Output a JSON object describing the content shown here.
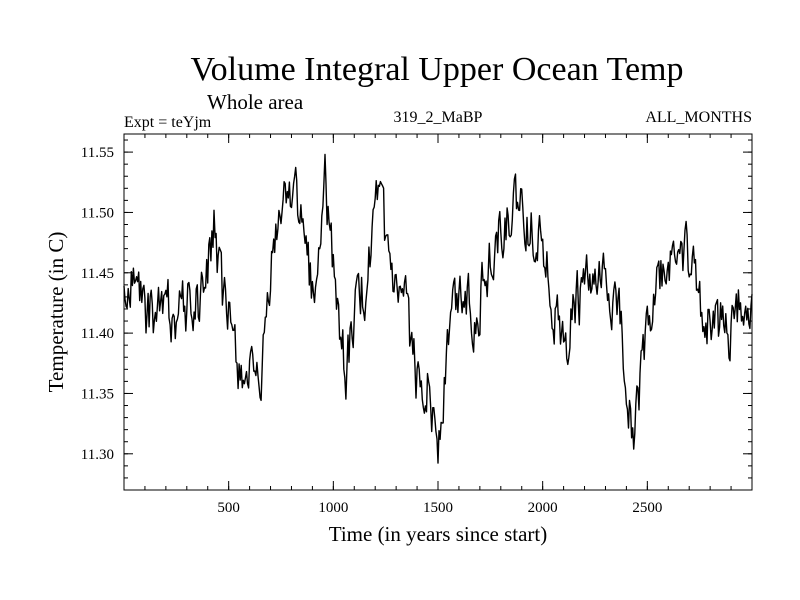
{
  "chart_data": {
    "type": "line",
    "title": "Volume Integral Upper Ocean Temp",
    "subtitle": "Whole area",
    "info_left": "Expt = teYjm",
    "info_center": "319_2_MaBP",
    "info_right": "ALL_MONTHS",
    "xlabel": "Time (in years since start)",
    "ylabel": "Temperature (in C)",
    "xlim": [
      0,
      3000
    ],
    "ylim": [
      11.27,
      11.565
    ],
    "x_ticks": [
      500,
      1000,
      1500,
      2000,
      2500
    ],
    "x_tick_labels": [
      "500",
      "1000",
      "1500",
      "2000",
      "2500"
    ],
    "y_ticks": [
      11.3,
      11.35,
      11.4,
      11.45,
      11.5,
      11.55
    ],
    "y_tick_labels": [
      "11.30",
      "11.35",
      "11.40",
      "11.45",
      "11.50",
      "11.55"
    ],
    "x_minor_step": 100,
    "y_minor_step": 0.01,
    "series": [
      {
        "name": "Volume Integral Upper Ocean Temp",
        "color": "#000000",
        "sample_step_years": 5,
        "trend_points": {
          "x": [
            0,
            40,
            100,
            200,
            300,
            380,
            430,
            470,
            520,
            560,
            600,
            630,
            660,
            700,
            760,
            810,
            860,
            910,
            960,
            1020,
            1060,
            1100,
            1150,
            1210,
            1260,
            1300,
            1350,
            1400,
            1450,
            1500,
            1560,
            1620,
            1680,
            1740,
            1790,
            1860,
            1930,
            1990,
            2050,
            2100,
            2150,
            2200,
            2250,
            2300,
            2350,
            2400,
            2440,
            2480,
            2530,
            2600,
            2660,
            2700,
            2760,
            2830,
            2900,
            2960,
            3000
          ],
          "y": [
            11.42,
            11.45,
            11.41,
            11.42,
            11.42,
            11.43,
            11.49,
            11.42,
            11.4,
            11.37,
            11.37,
            11.33,
            11.36,
            11.45,
            11.51,
            11.53,
            11.47,
            11.43,
            11.52,
            11.42,
            11.37,
            11.41,
            11.44,
            11.5,
            11.46,
            11.42,
            11.41,
            11.36,
            11.37,
            11.31,
            11.41,
            11.44,
            11.42,
            11.46,
            11.48,
            11.5,
            11.49,
            11.49,
            11.43,
            11.38,
            11.42,
            11.44,
            11.43,
            11.44,
            11.42,
            11.37,
            11.32,
            11.38,
            11.43,
            11.45,
            11.48,
            11.45,
            11.42,
            11.41,
            11.4,
            11.43,
            11.41
          ]
        },
        "noise_amplitude": 0.022,
        "noise_seed": 319
      }
    ]
  }
}
